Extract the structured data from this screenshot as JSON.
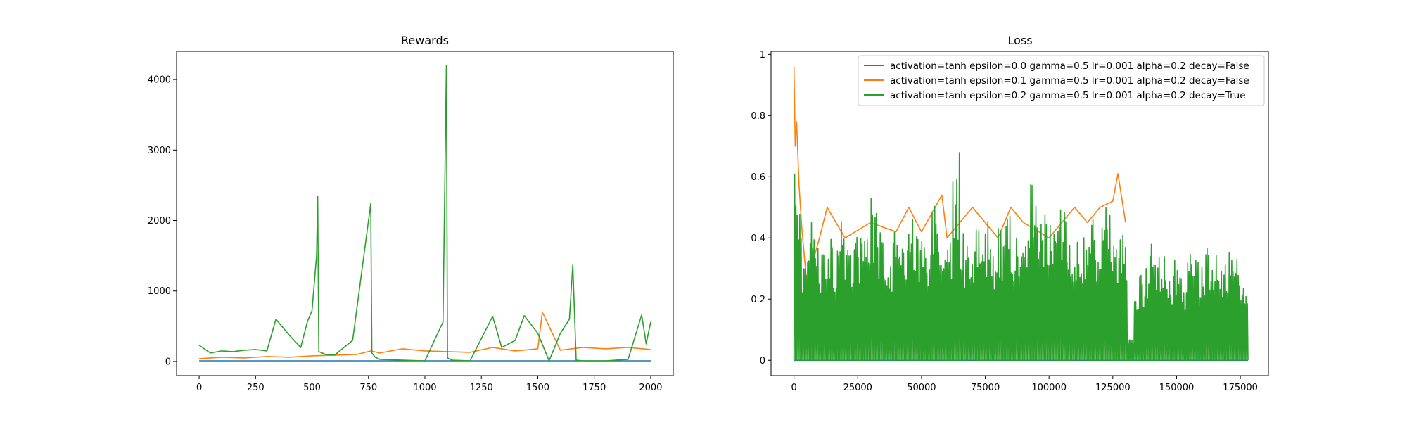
{
  "chart_data": [
    {
      "type": "line",
      "title": "Rewards",
      "xlabel": "",
      "ylabel": "",
      "xlim": [
        -100,
        2100
      ],
      "ylim": [
        -200,
        4400
      ],
      "xticks": [
        0,
        250,
        500,
        750,
        1000,
        1250,
        1500,
        1750,
        2000
      ],
      "yticks": [
        0,
        1000,
        2000,
        3000,
        4000
      ],
      "grid": false,
      "legend": "none",
      "series": [
        {
          "color": "#1f77b4",
          "x": [
            0,
            250,
            500,
            750,
            1000,
            1250,
            1500,
            1750,
            2000
          ],
          "y": [
            10,
            10,
            10,
            10,
            10,
            10,
            10,
            10,
            10
          ]
        },
        {
          "color": "#ff7f0e",
          "x": [
            0,
            100,
            200,
            300,
            400,
            500,
            600,
            700,
            760,
            800,
            900,
            1000,
            1100,
            1200,
            1300,
            1400,
            1500,
            1520,
            1600,
            1700,
            1800,
            1900,
            2000
          ],
          "y": [
            40,
            60,
            50,
            70,
            60,
            80,
            90,
            100,
            150,
            120,
            180,
            150,
            140,
            130,
            200,
            150,
            180,
            700,
            160,
            200,
            180,
            200,
            170
          ]
        },
        {
          "color": "#2ca02c",
          "x": [
            0,
            50,
            100,
            150,
            200,
            250,
            300,
            340,
            400,
            450,
            480,
            500,
            520,
            525,
            530,
            560,
            600,
            680,
            760,
            765,
            780,
            800,
            900,
            1000,
            1080,
            1095,
            1100,
            1120,
            1200,
            1300,
            1340,
            1400,
            1440,
            1500,
            1550,
            1600,
            1640,
            1655,
            1670,
            1700,
            1800,
            1900,
            1960,
            1980,
            2000
          ],
          "y": [
            230,
            120,
            150,
            140,
            160,
            170,
            150,
            600,
            370,
            200,
            570,
            720,
            1500,
            2340,
            140,
            100,
            90,
            300,
            2240,
            120,
            60,
            30,
            20,
            10,
            560,
            4200,
            50,
            20,
            10,
            640,
            200,
            300,
            650,
            400,
            10,
            400,
            600,
            1370,
            20,
            10,
            10,
            30,
            660,
            250,
            560
          ]
        }
      ]
    },
    {
      "type": "line",
      "title": "Loss",
      "xlabel": "",
      "ylabel": "",
      "xlim": [
        -9000,
        186000
      ],
      "ylim": [
        -0.05,
        1.01
      ],
      "xticks": [
        0,
        25000,
        50000,
        75000,
        100000,
        125000,
        150000,
        175000
      ],
      "yticks": [
        0.0,
        0.2,
        0.4,
        0.6,
        0.8,
        1.0
      ],
      "grid": false,
      "legend": "top-right",
      "series": [
        {
          "name": "activation=tanh epsilon=0.0 gamma=0.5 lr=0.001 alpha=0.2 decay=False",
          "color": "#1f77b4",
          "x": [
            0,
            178000
          ],
          "y": [
            0.0,
            0.0
          ]
        },
        {
          "name": "activation=tanh epsilon=0.1 gamma=0.5 lr=0.001 alpha=0.2 decay=False",
          "color": "#ff7f0e",
          "x": [
            0,
            500,
            1000,
            2000,
            3000,
            5000,
            10000,
            13000,
            20000,
            30000,
            40000,
            45000,
            50000,
            58000,
            60000,
            65000,
            70000,
            80000,
            85000,
            90000,
            100000,
            105000,
            110000,
            115000,
            120000,
            125000,
            127000,
            130000
          ],
          "y": [
            0.96,
            0.7,
            0.78,
            0.57,
            0.44,
            0.25,
            0.4,
            0.5,
            0.4,
            0.45,
            0.42,
            0.5,
            0.42,
            0.54,
            0.4,
            0.45,
            0.5,
            0.4,
            0.5,
            0.45,
            0.4,
            0.45,
            0.5,
            0.45,
            0.5,
            0.52,
            0.61,
            0.45
          ]
        },
        {
          "name": "activation=tanh epsilon=0.2 gamma=0.5 lr=0.001 alpha=0.2 decay=True",
          "color": "#2ca02c",
          "peaks": [
            0.63,
            0.4,
            0.45,
            0.38,
            0.44,
            0.4,
            0.46,
            0.41,
            0.43,
            0.4,
            0.53,
            0.42,
            0.4,
            0.44,
            0.41,
            0.5,
            0.43,
            0.4,
            0.53,
            0.4,
            0.44,
            0.69,
            0.42,
            0.4,
            0.45,
            0.48,
            0.4,
            0.44,
            0.5,
            0.43,
            0.42,
            0.61,
            0.45,
            0.48,
            0.47,
            0.54,
            0.44,
            0.46,
            0.45,
            0.47,
            0.46,
            0.55,
            0.45,
            0.44,
            0.07,
            0.28,
            0.3,
            0.38,
            0.35,
            0.3,
            0.38,
            0.28,
            0.36,
            0.33,
            0.38,
            0.35,
            0.3,
            0.36,
            0.35,
            0.28
          ],
          "x_end": 178000,
          "y": [
            0.0,
            0.69
          ]
        }
      ]
    }
  ]
}
